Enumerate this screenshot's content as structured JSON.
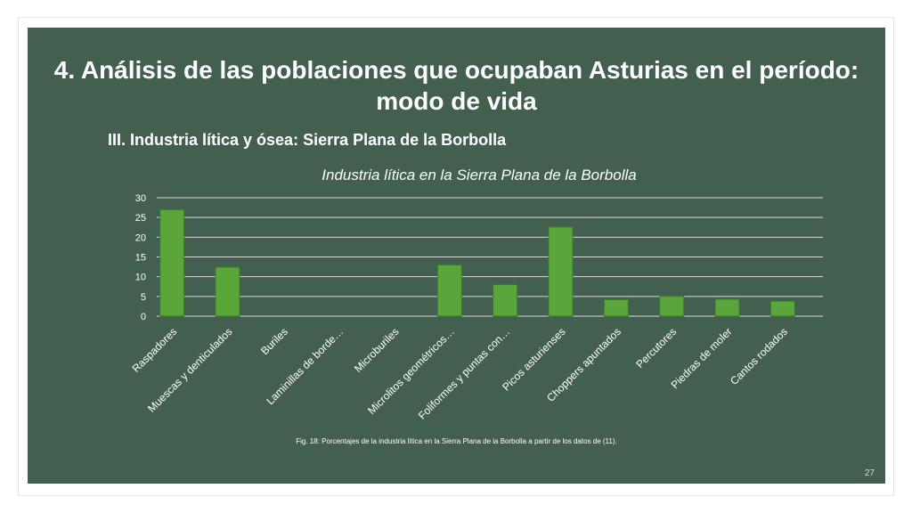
{
  "slide": {
    "title": "4. Análisis de las poblaciones que ocupaban Asturias en el período: modo de vida",
    "subtitle": "III. Industria lítica y ósea: Sierra Plana de la Borbolla",
    "caption": "Fig. 18: Porcentajes de la industria lítica en la Sierra Plana de la Borbolla a partir de los datos de (11).",
    "page_number": "27",
    "background_color": "#425f50"
  },
  "chart_data": {
    "type": "bar",
    "title": "Industria lítica en la Sierra Plana de la Borbolla",
    "xlabel": "",
    "ylabel": "",
    "ylim": [
      0,
      30
    ],
    "yticks": [
      0,
      5,
      10,
      15,
      20,
      25,
      30
    ],
    "grid": true,
    "bar_color": "#5aa63a",
    "categories": [
      "Raspadores",
      "Muescas y denticulados",
      "Buriles",
      "Laminillas de borde…",
      "Microburiles",
      "Microlitos geométricos…",
      "Foliformes y puntas con…",
      "Picos asturienses",
      "Choppers apuntados",
      "Percutores",
      "Piedras de moler",
      "Cantos rodados"
    ],
    "values": [
      27,
      12.4,
      0,
      0,
      0,
      13,
      8,
      22.6,
      4.2,
      5,
      4.3,
      3.8
    ]
  }
}
